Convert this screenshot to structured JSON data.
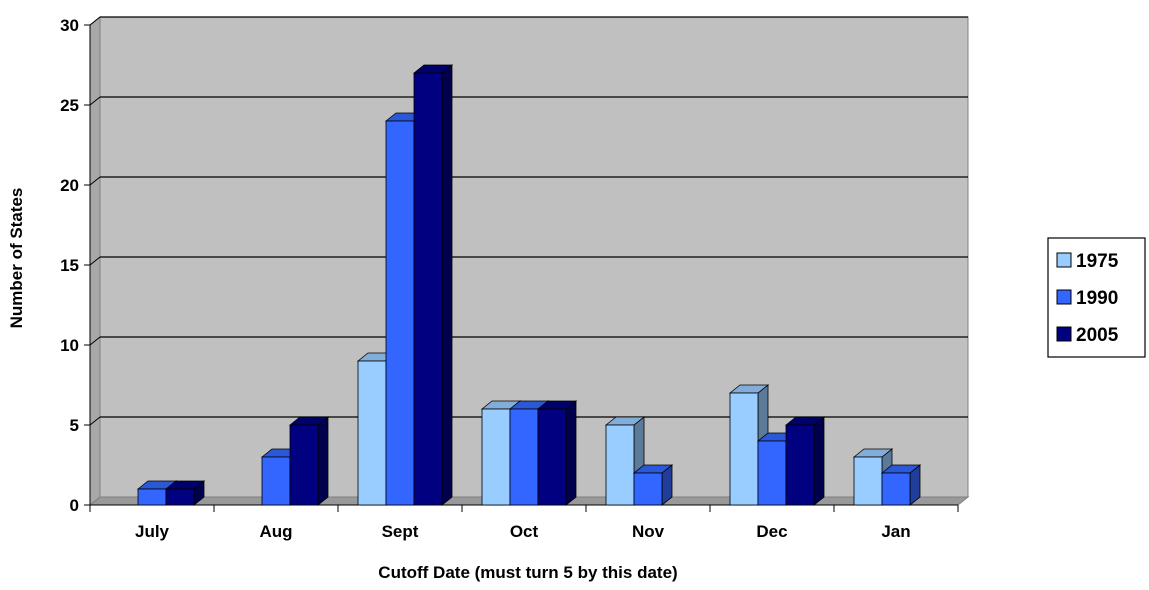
{
  "chart_data": {
    "type": "bar",
    "title": "",
    "xlabel": "Cutoff Date (must turn 5 by this date)",
    "ylabel": "Number of States",
    "categories": [
      "July",
      "Aug",
      "Sept",
      "Oct",
      "Nov",
      "Dec",
      "Jan"
    ],
    "series": [
      {
        "name": "1975",
        "color": "#99ccff",
        "values": [
          0,
          0,
          9,
          6,
          5,
          7,
          3
        ]
      },
      {
        "name": "1990",
        "color": "#3366ff",
        "values": [
          1,
          3,
          24,
          6,
          2,
          4,
          2
        ]
      },
      {
        "name": "2005",
        "color": "#000080",
        "values": [
          1,
          5,
          27,
          6,
          0,
          5,
          0
        ]
      }
    ],
    "ylim": [
      0,
      30
    ],
    "yticks": [
      "0",
      "5",
      "10",
      "15",
      "20",
      "25",
      "30"
    ],
    "grid": true,
    "legend_position": "right",
    "plot_background": "#c0c0c0",
    "style": "3d-clustered-column"
  }
}
